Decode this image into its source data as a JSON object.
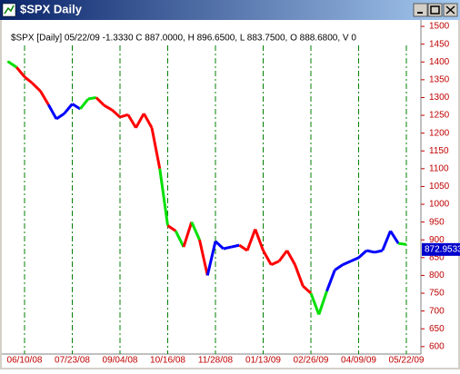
{
  "chart_data": {
    "type": "line",
    "title": "$SPX Daily",
    "subtitle": "$SPX [Daily] 05/22/09  -1.3330 C 887.0000, H 896.6500, L 883.7500, O 888.6800, V 0",
    "categories": [
      null,
      null,
      "06/10/08",
      null,
      null,
      null,
      null,
      null,
      "07/23/08",
      null,
      null,
      null,
      null,
      null,
      "09/04/08",
      null,
      null,
      null,
      null,
      null,
      "10/16/08",
      null,
      null,
      null,
      null,
      null,
      "11/28/08",
      null,
      null,
      null,
      null,
      null,
      "01/13/09",
      null,
      null,
      null,
      null,
      null,
      "02/26/09",
      null,
      null,
      null,
      null,
      null,
      "04/09/09",
      null,
      null,
      null,
      null,
      null,
      "05/22/09"
    ],
    "values": [
      1400,
      1385,
      1358,
      1340,
      1318,
      1280,
      1240,
      1255,
      1282,
      1268,
      1296,
      1300,
      1278,
      1265,
      1245,
      1252,
      1215,
      1255,
      1215,
      1100,
      940,
      925,
      880,
      950,
      900,
      800,
      896,
      875,
      880,
      885,
      870,
      930,
      870,
      830,
      840,
      870,
      830,
      770,
      750,
      690,
      756,
      815,
      830,
      840,
      850,
      870,
      865,
      870,
      925,
      890,
      887
    ],
    "colors": [
      "#00e000",
      "#00e000",
      "#ff0000",
      "#ff0000",
      "#ff0000",
      "#ff0000",
      "#0000ff",
      "#0000ff",
      "#0000ff",
      "#0000ff",
      "#00e000",
      "#00e000",
      "#ff0000",
      "#ff0000",
      "#ff0000",
      "#ff0000",
      "#ff0000",
      "#ff0000",
      "#ff0000",
      "#ff0000",
      "#00e000",
      "#ff0000",
      "#00e000",
      "#ff0000",
      "#00e000",
      "#ff0000",
      "#0000ff",
      "#0000ff",
      "#0000ff",
      "#0000ff",
      "#ff0000",
      "#ff0000",
      "#ff0000",
      "#ff0000",
      "#ff0000",
      "#ff0000",
      "#ff0000",
      "#ff0000",
      "#ff0000",
      "#00e000",
      "#00e000",
      "#0000ff",
      "#0000ff",
      "#0000ff",
      "#0000ff",
      "#0000ff",
      "#0000ff",
      "#0000ff",
      "#0000ff",
      "#0000ff",
      "#00e000"
    ],
    "last_price": 872.9533,
    "ylim": [
      574,
      1518
    ],
    "yticks": [
      600,
      650,
      700,
      750,
      800,
      850,
      900,
      950,
      1000,
      1050,
      1100,
      1150,
      1200,
      1250,
      1300,
      1350,
      1400,
      1450,
      1500
    ],
    "grid": true
  }
}
